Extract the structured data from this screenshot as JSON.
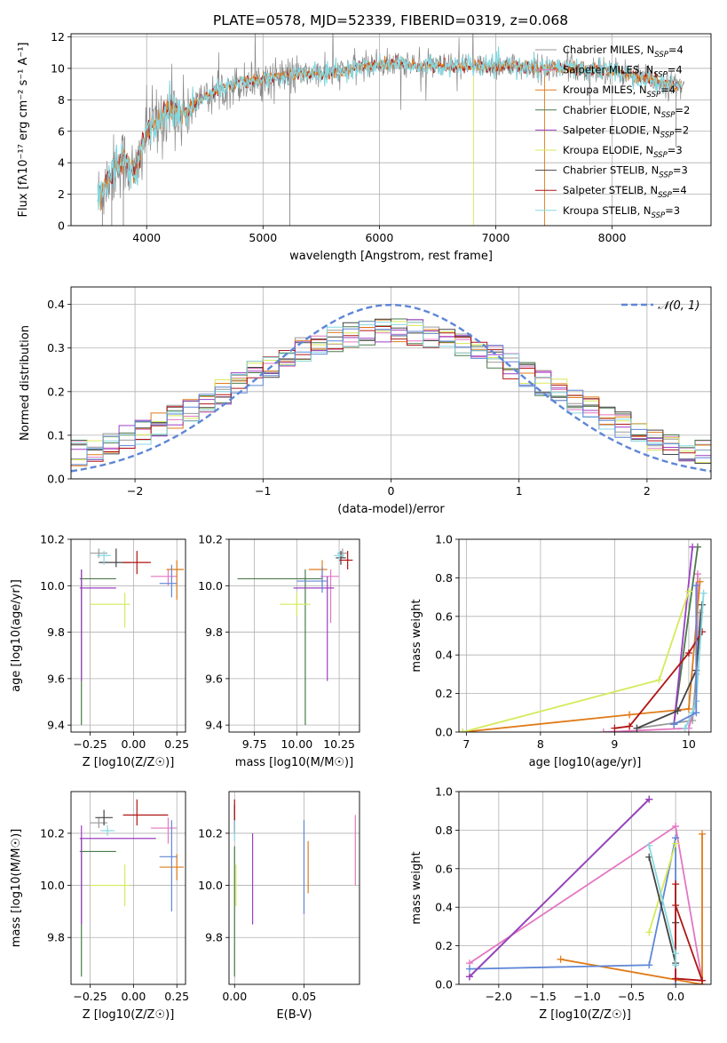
{
  "page": {
    "title": "PLATE=0578, MJD=52339, FIBERID=0319, z=0.068"
  },
  "legend": [
    {
      "label": "Chabrier MILES, N",
      "sub": "SSP",
      "eq": "=4",
      "color": "#999999"
    },
    {
      "label": "Salpeter MILES, N",
      "sub": "SSP",
      "eq": "=4",
      "color": "#e377c2"
    },
    {
      "label": "Kroupa MILES, N",
      "sub": "SSP",
      "eq": "=4",
      "color": "#e07b1a"
    },
    {
      "label": "Chabrier ELODIE, N",
      "sub": "SSP",
      "eq": "=2",
      "color": "#4a7a4a"
    },
    {
      "label": "Salpeter ELODIE, N",
      "sub": "SSP",
      "eq": "=2",
      "color": "#9b3fc2"
    },
    {
      "label": "Kroupa ELODIE, N",
      "sub": "SSP",
      "eq": "=3",
      "color": "#d6ea5a"
    },
    {
      "label": "Chabrier STELIB, N",
      "sub": "SSP",
      "eq": "=3",
      "color": "#444444"
    },
    {
      "label": "Salpeter STELIB, N",
      "sub": "SSP",
      "eq": "=4",
      "color": "#b01515"
    },
    {
      "label": "Kroupa STELIB, N",
      "sub": "SSP",
      "eq": "=3",
      "color": "#85d8e0"
    }
  ],
  "chart_data": [
    {
      "id": "spectrum",
      "type": "line",
      "xlabel": "wavelength [Angstrom, rest frame]",
      "ylabel": "Flux [fλ10⁻¹⁷ erg cm⁻² s⁻¹ A⁻¹]",
      "xlim": [
        3350,
        8850
      ],
      "ylim": [
        0,
        12.2
      ],
      "xticks": [
        4000,
        5000,
        6000,
        7000,
        8000
      ],
      "yticks": [
        0,
        2,
        4,
        6,
        8,
        10,
        12
      ],
      "continuum_x": [
        3580,
        3700,
        3800,
        3900,
        4000,
        4100,
        4200,
        4300,
        4500,
        4700,
        5000,
        5300,
        5600,
        5900,
        6200,
        6500,
        6800,
        7100,
        7400,
        7700,
        8000,
        8300,
        8600
      ],
      "continuum_y": [
        1.8,
        3.4,
        4.2,
        3.2,
        6.0,
        6.6,
        7.5,
        7.1,
        8.2,
        8.9,
        9.3,
        9.6,
        9.7,
        10.2,
        10.3,
        10.1,
        10.1,
        10.2,
        10.0,
        10.0,
        9.9,
        9.3,
        8.8
      ]
    },
    {
      "id": "residuals",
      "type": "line",
      "xlabel": "(data-model)/error",
      "ylabel": "Normed distribution",
      "xlim": [
        -2.5,
        2.5
      ],
      "ylim": [
        0,
        0.44
      ],
      "xticks": [
        -2,
        -1,
        0,
        1,
        2
      ],
      "yticks": [
        0,
        0.1,
        0.2,
        0.3,
        0.4
      ],
      "legend": "𝒩(0, 1)",
      "bins": 40
    },
    {
      "id": "age_vs_Z",
      "type": "scatter",
      "xlabel": "Z [log10(Z/Z☉)]",
      "ylabel": "age  [log10(age/yr)]",
      "xlim": [
        -0.36,
        0.3
      ],
      "ylim": [
        9.37,
        10.2
      ],
      "xticks": [
        -0.25,
        0,
        0.25
      ],
      "yticks": [
        9.4,
        9.6,
        9.8,
        10.0,
        10.2
      ],
      "points": [
        {
          "x": -0.2,
          "y": 10.14,
          "xerr": [
            0.05,
            0.05
          ],
          "yerr": [
            0.02,
            0.02
          ],
          "c": "#999999"
        },
        {
          "x": 0.2,
          "y": 10.04,
          "xerr": [
            0.1,
            0.05
          ],
          "yerr": [
            0.04,
            0.03
          ],
          "c": "#e377c2"
        },
        {
          "x": 0.25,
          "y": 10.07,
          "xerr": [
            0.06,
            0.04
          ],
          "yerr": [
            0.13,
            0.04
          ],
          "c": "#e07b1a"
        },
        {
          "x": -0.3,
          "y": 10.03,
          "xerr": [
            0.01,
            0.2
          ],
          "yerr": [
            0.63,
            0.04
          ],
          "c": "#4a7a4a"
        },
        {
          "x": -0.3,
          "y": 9.99,
          "xerr": [
            0.01,
            0.2
          ],
          "yerr": [
            0.4,
            0.08
          ],
          "c": "#9b3fc2"
        },
        {
          "x": -0.05,
          "y": 9.92,
          "xerr": [
            0.2,
            0.03
          ],
          "yerr": [
            0.1,
            0.05
          ],
          "c": "#d6ea5a"
        },
        {
          "x": -0.1,
          "y": 10.1,
          "xerr": [
            0.1,
            0.08
          ],
          "yerr": [
            0.02,
            0.06
          ],
          "c": "#444444"
        },
        {
          "x": 0.02,
          "y": 10.1,
          "xerr": [
            0.08,
            0.08
          ],
          "yerr": [
            0.05,
            0.05
          ],
          "c": "#b01515"
        },
        {
          "x": -0.17,
          "y": 10.13,
          "xerr": [
            0.04,
            0.04
          ],
          "yerr": [
            0.04,
            0.02
          ],
          "c": "#85d8e0"
        },
        {
          "x": 0.22,
          "y": 10.01,
          "xerr": [
            0.07,
            0.03
          ],
          "yerr": [
            0.06,
            0.08
          ],
          "c": "#5e86d6"
        }
      ]
    },
    {
      "id": "age_vs_mass",
      "type": "scatter",
      "xlabel": "mass [log10(M/M☉)]",
      "ylabel": "",
      "xlim": [
        9.6,
        10.37
      ],
      "ylim": [
        9.37,
        10.2
      ],
      "xticks": [
        9.75,
        10.0,
        10.25
      ],
      "yticks": [
        9.4,
        9.6,
        9.8,
        10.0,
        10.2
      ],
      "points": [
        {
          "x": 10.27,
          "y": 10.14,
          "xerr": [
            0.03,
            0.03
          ],
          "yerr": [
            0.02,
            0.02
          ],
          "c": "#999999"
        },
        {
          "x": 10.2,
          "y": 10.04,
          "xerr": [
            0.06,
            0.05
          ],
          "yerr": [
            0.2,
            0.03
          ],
          "c": "#e377c2"
        },
        {
          "x": 10.15,
          "y": 10.07,
          "xerr": [
            0.08,
            0.03
          ],
          "yerr": [
            0.07,
            0.04
          ],
          "c": "#e07b1a"
        },
        {
          "x": 10.05,
          "y": 10.03,
          "xerr": [
            0.4,
            0.1
          ],
          "yerr": [
            0.63,
            0.04
          ],
          "c": "#4a7a4a"
        },
        {
          "x": 10.18,
          "y": 9.99,
          "xerr": [
            0.2,
            0.04
          ],
          "yerr": [
            0.4,
            0.05
          ],
          "c": "#9b3fc2"
        },
        {
          "x": 10.0,
          "y": 9.92,
          "xerr": [
            0.1,
            0.08
          ],
          "yerr": [
            0.05,
            0.05
          ],
          "c": "#d6ea5a"
        },
        {
          "x": 10.26,
          "y": 10.12,
          "xerr": [
            0.03,
            0.03
          ],
          "yerr": [
            0.03,
            0.03
          ],
          "c": "#444444"
        },
        {
          "x": 10.3,
          "y": 10.11,
          "xerr": [
            0.05,
            0.03
          ],
          "yerr": [
            0.04,
            0.04
          ],
          "c": "#b01515"
        },
        {
          "x": 10.25,
          "y": 10.13,
          "xerr": [
            0.03,
            0.03
          ],
          "yerr": [
            0.02,
            0.02
          ],
          "c": "#85d8e0"
        },
        {
          "x": 10.15,
          "y": 10.02,
          "xerr": [
            0.15,
            0.03
          ],
          "yerr": [
            0.05,
            0.06
          ],
          "c": "#5e86d6"
        }
      ]
    },
    {
      "id": "weight_vs_age",
      "type": "line",
      "xlabel": "age  [log10(age/yr)]",
      "ylabel": "mass weight",
      "xlim": [
        6.9,
        10.3
      ],
      "ylim": [
        0,
        1.0
      ],
      "xticks": [
        7,
        8,
        9,
        10
      ],
      "yticks": [
        0,
        0.2,
        0.4,
        0.6,
        0.8,
        1.0
      ],
      "series": [
        {
          "c": "#999999",
          "x": [
            9.3,
            10.05,
            10.1,
            10.15
          ],
          "y": [
            0.02,
            0.06,
            0.3,
            0.62
          ]
        },
        {
          "c": "#e377c2",
          "x": [
            8.85,
            10.0,
            10.1,
            10.12
          ],
          "y": [
            0.0,
            0.02,
            0.16,
            0.82
          ]
        },
        {
          "c": "#e07b1a",
          "x": [
            6.95,
            9.2,
            10.0,
            10.15
          ],
          "y": [
            0.0,
            0.09,
            0.12,
            0.78
          ]
        },
        {
          "c": "#4a7a4a",
          "x": [
            9.8,
            10.12
          ],
          "y": [
            0.04,
            0.96
          ]
        },
        {
          "c": "#9b3fc2",
          "x": [
            9.8,
            10.05
          ],
          "y": [
            0.04,
            0.96
          ]
        },
        {
          "c": "#d6ea5a",
          "x": [
            6.95,
            9.6,
            10.0
          ],
          "y": [
            0.0,
            0.27,
            0.73
          ]
        },
        {
          "c": "#444444",
          "x": [
            9.3,
            9.85,
            10.1,
            10.18
          ],
          "y": [
            0.02,
            0.11,
            0.32,
            0.66
          ]
        },
        {
          "c": "#b01515",
          "x": [
            9.0,
            9.2,
            10.0,
            10.18
          ],
          "y": [
            0.02,
            0.03,
            0.41,
            0.52
          ]
        },
        {
          "c": "#85d8e0",
          "x": [
            9.95,
            10.05,
            10.1,
            10.2
          ],
          "y": [
            0.02,
            0.1,
            0.16,
            0.72
          ]
        },
        {
          "c": "#5e86d6",
          "x": [
            9.8,
            10.1,
            10.1
          ],
          "y": [
            0.04,
            0.1,
            0.76
          ]
        }
      ]
    },
    {
      "id": "mass_vs_Z",
      "type": "scatter",
      "xlabel": "Z [log10(Z/Z☉)]",
      "ylabel": "mass [log10(M/M☉)]",
      "xlim": [
        -0.36,
        0.3
      ],
      "ylim": [
        9.62,
        10.36
      ],
      "xticks": [
        -0.25,
        0,
        0.25
      ],
      "yticks": [
        9.8,
        10.0,
        10.2
      ],
      "points": [
        {
          "x": -0.2,
          "y": 10.24,
          "xerr": [
            0.05,
            0.05
          ],
          "yerr": [
            0.02,
            0.02
          ],
          "c": "#999999"
        },
        {
          "x": 0.2,
          "y": 10.22,
          "xerr": [
            0.1,
            0.05
          ],
          "yerr": [
            0.06,
            0.04
          ],
          "c": "#e377c2"
        },
        {
          "x": 0.25,
          "y": 10.07,
          "xerr": [
            0.1,
            0.04
          ],
          "yerr": [
            0.05,
            0.05
          ],
          "c": "#e07b1a"
        },
        {
          "x": -0.3,
          "y": 10.13,
          "xerr": [
            0.01,
            0.2
          ],
          "yerr": [
            0.48,
            0.05
          ],
          "c": "#4a7a4a"
        },
        {
          "x": -0.3,
          "y": 10.18,
          "xerr": [
            0.01,
            0.43
          ],
          "yerr": [
            0.33,
            0.05
          ],
          "c": "#9b3fc2"
        },
        {
          "x": -0.05,
          "y": 10.0,
          "xerr": [
            0.2,
            0.03
          ],
          "yerr": [
            0.08,
            0.08
          ],
          "c": "#d6ea5a"
        },
        {
          "x": -0.17,
          "y": 10.26,
          "xerr": [
            0.05,
            0.05
          ],
          "yerr": [
            0.03,
            0.03
          ],
          "c": "#444444"
        },
        {
          "x": 0.02,
          "y": 10.27,
          "xerr": [
            0.08,
            0.18
          ],
          "yerr": [
            0.04,
            0.06
          ],
          "c": "#b01515"
        },
        {
          "x": -0.15,
          "y": 10.21,
          "xerr": [
            0.04,
            0.04
          ],
          "yerr": [
            0.02,
            0.02
          ],
          "c": "#85d8e0"
        },
        {
          "x": 0.22,
          "y": 10.11,
          "xerr": [
            0.07,
            0.03
          ],
          "yerr": [
            0.21,
            0.14
          ],
          "c": "#5e86d6"
        }
      ]
    },
    {
      "id": "mass_vs_ebv",
      "type": "scatter",
      "xlabel": "E(B-V)",
      "ylabel": "",
      "xlim": [
        -0.004,
        0.09
      ],
      "ylim": [
        9.62,
        10.36
      ],
      "xticks": [
        0.0,
        0.05
      ],
      "yticks": [
        9.8,
        10.0,
        10.2
      ],
      "points": [
        {
          "x": 0.0,
          "y": 10.24,
          "yerr": [
            0.02,
            0.02
          ],
          "c": "#999999"
        },
        {
          "x": 0.087,
          "y": 10.13,
          "yerr": [
            0.13,
            0.14
          ],
          "c": "#e377c2"
        },
        {
          "x": 0.053,
          "y": 10.07,
          "yerr": [
            0.1,
            0.1
          ],
          "c": "#e07b1a"
        },
        {
          "x": 0.0,
          "y": 10.0,
          "yerr": [
            0.35,
            0.15
          ],
          "c": "#4a7a4a"
        },
        {
          "x": 0.013,
          "y": 10.02,
          "yerr": [
            0.17,
            0.18
          ],
          "c": "#9b3fc2"
        },
        {
          "x": 0.001,
          "y": 10.0,
          "yerr": [
            0.08,
            0.08
          ],
          "c": "#d6ea5a"
        },
        {
          "x": 0.0,
          "y": 10.26,
          "yerr": [
            0.05,
            0.05
          ],
          "c": "#444444"
        },
        {
          "x": 0.0,
          "y": 10.27,
          "yerr": [
            0.07,
            0.06
          ],
          "c": "#b01515"
        },
        {
          "x": 0.0,
          "y": 10.21,
          "yerr": [
            0.04,
            0.04
          ],
          "c": "#85d8e0"
        },
        {
          "x": 0.05,
          "y": 10.07,
          "yerr": [
            0.18,
            0.18
          ],
          "c": "#5e86d6"
        }
      ]
    },
    {
      "id": "weight_vs_Z",
      "type": "line",
      "xlabel": "Z [log10(Z/Z☉)]",
      "ylabel": "mass weight",
      "xlim": [
        -2.45,
        0.4
      ],
      "ylim": [
        0,
        1.0
      ],
      "xticks": [
        -2.0,
        -1.5,
        -1.0,
        -0.5,
        0.0
      ],
      "yticks": [
        0,
        0.2,
        0.4,
        0.6,
        0.8,
        1.0
      ],
      "series": [
        {
          "c": "#e377c2",
          "x": [
            -2.33,
            0.0,
            0.3
          ],
          "y": [
            0.11,
            0.82,
            0.02
          ]
        },
        {
          "c": "#e07b1a",
          "x": [
            -1.3,
            0.3,
            0.3
          ],
          "y": [
            0.13,
            0.0,
            0.78
          ]
        },
        {
          "c": "#5e86d6",
          "x": [
            -2.33,
            -0.3,
            0.0,
            0.0
          ],
          "y": [
            0.08,
            0.1,
            0.76,
            0.0
          ]
        },
        {
          "c": "#4a7a4a",
          "x": [
            -2.33,
            -0.3
          ],
          "y": [
            0.04,
            0.96
          ]
        },
        {
          "c": "#9b3fc2",
          "x": [
            -2.33,
            -0.3
          ],
          "y": [
            0.04,
            0.96
          ]
        },
        {
          "c": "#d6ea5a",
          "x": [
            -0.3,
            0.0
          ],
          "y": [
            0.27,
            0.73
          ]
        },
        {
          "c": "#444444",
          "x": [
            -0.3,
            0.0,
            0.0
          ],
          "y": [
            0.66,
            0.11,
            0.32
          ]
        },
        {
          "c": "#b01515",
          "x": [
            0.0,
            0.0,
            0.3,
            0.0
          ],
          "y": [
            0.52,
            0.03,
            0.02,
            0.41
          ]
        },
        {
          "c": "#85d8e0",
          "x": [
            -0.3,
            0.0,
            0.0
          ],
          "y": [
            0.72,
            0.16,
            0.1
          ]
        }
      ]
    }
  ]
}
